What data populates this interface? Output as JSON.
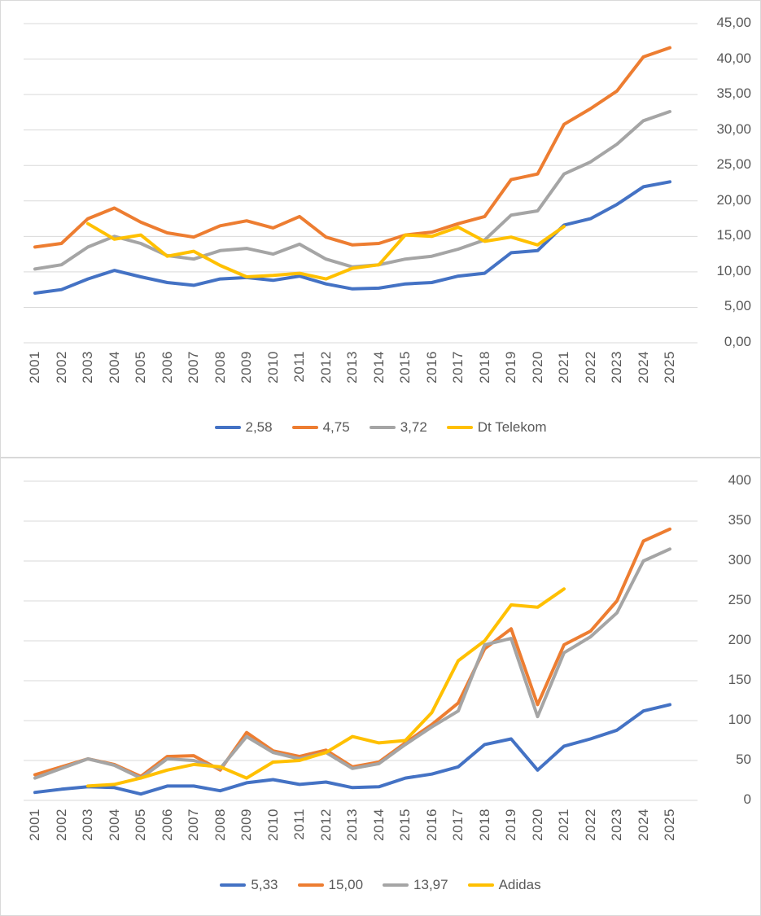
{
  "page": {
    "background": "#ffffff",
    "grid_color": "#d9d9d9",
    "axis_text_color": "#595959"
  },
  "chart_data": [
    {
      "type": "line",
      "title": "",
      "y_axis_side": "right",
      "legend_position": "bottom",
      "grid": true,
      "x_label_rotation": 90,
      "x": [
        "2001",
        "2002",
        "2003",
        "2004",
        "2005",
        "2006",
        "2007",
        "2008",
        "2009",
        "2010",
        "2011",
        "2012",
        "2013",
        "2014",
        "2015",
        "2016",
        "2017",
        "2018",
        "2019",
        "2020",
        "2021",
        "2022",
        "2023",
        "2024",
        "2025"
      ],
      "ylim": [
        0,
        45
      ],
      "yticks": [
        "0,00",
        "5,00",
        "10,00",
        "15,00",
        "20,00",
        "25,00",
        "30,00",
        "35,00",
        "40,00",
        "45,00"
      ],
      "series": [
        {
          "name": "2,58",
          "color": "#4472C4",
          "values": [
            7.0,
            7.5,
            9.0,
            10.2,
            9.3,
            8.5,
            8.1,
            9.0,
            9.2,
            8.8,
            9.4,
            8.3,
            7.6,
            7.7,
            8.3,
            8.5,
            9.4,
            9.8,
            12.7,
            13.0,
            16.6,
            17.5,
            19.5,
            22.0,
            22.7
          ]
        },
        {
          "name": "4,75",
          "color": "#ED7D31",
          "values": [
            13.5,
            14.0,
            17.5,
            19.0,
            17.0,
            15.5,
            14.9,
            16.5,
            17.2,
            16.2,
            17.8,
            14.9,
            13.8,
            14.0,
            15.2,
            15.6,
            16.8,
            17.8,
            23.0,
            23.8,
            30.8,
            33.0,
            35.5,
            40.3,
            41.6
          ]
        },
        {
          "name": "3,72",
          "color": "#A5A5A5",
          "values": [
            10.4,
            11.0,
            13.5,
            15.0,
            14.0,
            12.3,
            11.8,
            13.0,
            13.3,
            12.5,
            13.9,
            11.8,
            10.7,
            11.0,
            11.8,
            12.2,
            13.2,
            14.5,
            18.0,
            18.6,
            23.8,
            25.5,
            28.0,
            31.3,
            32.6
          ]
        },
        {
          "name": "Dt Telekom",
          "color": "#FFC000",
          "values": [
            null,
            null,
            16.8,
            14.6,
            15.2,
            12.2,
            12.9,
            10.9,
            9.3,
            9.5,
            9.8,
            9.0,
            10.5,
            11.0,
            15.2,
            15.0,
            16.3,
            14.3,
            14.9,
            13.8,
            16.4,
            null,
            null,
            null,
            null
          ]
        }
      ]
    },
    {
      "type": "line",
      "title": "",
      "y_axis_side": "right",
      "legend_position": "bottom",
      "grid": true,
      "x_label_rotation": 90,
      "x": [
        "2001",
        "2002",
        "2003",
        "2004",
        "2005",
        "2006",
        "2007",
        "2008",
        "2009",
        "2010",
        "2011",
        "2012",
        "2013",
        "2014",
        "2015",
        "2016",
        "2017",
        "2018",
        "2019",
        "2020",
        "2021",
        "2022",
        "2023",
        "2024",
        "2025"
      ],
      "ylim": [
        0,
        400
      ],
      "yticks": [
        "0",
        "50",
        "100",
        "150",
        "200",
        "250",
        "300",
        "350",
        "400"
      ],
      "series": [
        {
          "name": "5,33",
          "color": "#4472C4",
          "values": [
            10,
            14,
            17,
            16,
            8,
            18,
            18,
            12,
            22,
            26,
            20,
            23,
            16,
            17,
            28,
            33,
            42,
            70,
            77,
            38,
            68,
            77,
            88,
            112,
            120
          ]
        },
        {
          "name": "15,00",
          "color": "#ED7D31",
          "values": [
            32,
            42,
            52,
            45,
            30,
            55,
            56,
            38,
            85,
            62,
            55,
            63,
            42,
            48,
            72,
            95,
            122,
            190,
            215,
            120,
            195,
            212,
            250,
            325,
            340
          ]
        },
        {
          "name": "13,97",
          "color": "#A5A5A5",
          "values": [
            28,
            40,
            52,
            44,
            28,
            52,
            50,
            40,
            80,
            60,
            52,
            60,
            40,
            46,
            70,
            92,
            112,
            195,
            203,
            105,
            185,
            205,
            235,
            300,
            315
          ]
        },
        {
          "name": "Adidas",
          "color": "#FFC000",
          "values": [
            null,
            null,
            18,
            20,
            28,
            38,
            45,
            42,
            28,
            48,
            50,
            60,
            80,
            72,
            75,
            110,
            175,
            200,
            245,
            242,
            265,
            null,
            null,
            null,
            null
          ]
        }
      ]
    }
  ]
}
